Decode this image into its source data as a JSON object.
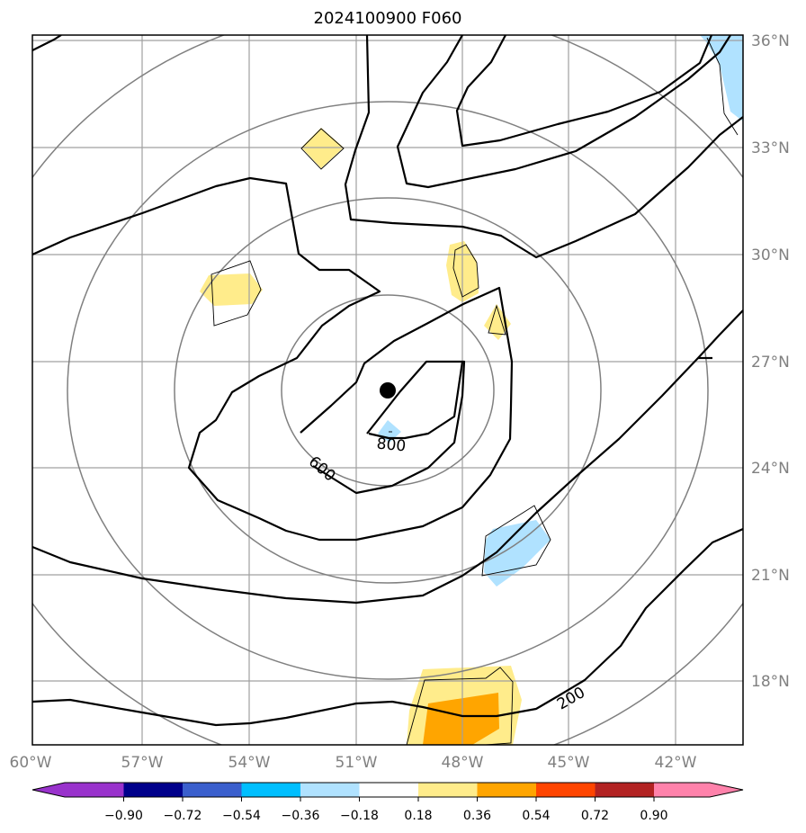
{
  "title": "2024100900 F060",
  "map": {
    "lon_labels": [
      "60°W",
      "57°W",
      "54°W",
      "51°W",
      "48°W",
      "45°W",
      "42°W"
    ],
    "lat_labels": [
      "36°N",
      "33°N",
      "30°N",
      "27°N",
      "24°N",
      "21°N",
      "18°N"
    ],
    "contour_labels": [
      "800",
      "600",
      "200"
    ],
    "center_marker": "storm-center",
    "grid_color": "#a0a0a0",
    "ring_color": "#808080",
    "contour_color": "#000000"
  },
  "colorbar": {
    "tick_labels": [
      "−0.90",
      "−0.72",
      "−0.54",
      "−0.36",
      "−0.18",
      "0.18",
      "0.36",
      "0.54",
      "0.72",
      "0.90"
    ],
    "colors": [
      "#9932cc",
      "#00008b",
      "#3a5fcd",
      "#00bfff",
      "#b0e2ff",
      "#ffffff",
      "#ffec8b",
      "#ffa500",
      "#ff4500",
      "#b22222",
      "#ff82ab"
    ]
  }
}
